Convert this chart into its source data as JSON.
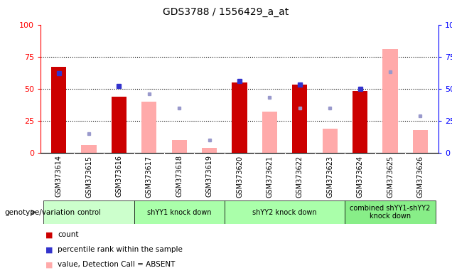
{
  "title": "GDS3788 / 1556429_a_at",
  "samples": [
    "GSM373614",
    "GSM373615",
    "GSM373616",
    "GSM373617",
    "GSM373618",
    "GSM373619",
    "GSM373620",
    "GSM373621",
    "GSM373622",
    "GSM373623",
    "GSM373624",
    "GSM373625",
    "GSM373626"
  ],
  "count": [
    67,
    0,
    44,
    0,
    0,
    0,
    55,
    0,
    53,
    0,
    48,
    0,
    0
  ],
  "percentile_rank": [
    62,
    0,
    52,
    0,
    0,
    0,
    56,
    0,
    53,
    0,
    50,
    0,
    0
  ],
  "absent_value": [
    0,
    6,
    0,
    40,
    10,
    4,
    0,
    32,
    0,
    19,
    0,
    81,
    18
  ],
  "absent_rank": [
    0,
    15,
    0,
    46,
    35,
    10,
    0,
    43,
    35,
    35,
    0,
    63,
    29
  ],
  "group_boundaries": [
    {
      "start": 0,
      "end": 2,
      "label": "control",
      "color": "#ccffcc"
    },
    {
      "start": 3,
      "end": 5,
      "label": "shYY1 knock down",
      "color": "#aaffaa"
    },
    {
      "start": 6,
      "end": 9,
      "label": "shYY2 knock down",
      "color": "#aaffaa"
    },
    {
      "start": 10,
      "end": 12,
      "label": "combined shYY1-shYY2\nknock down",
      "color": "#88ee88"
    }
  ],
  "bar_color_count": "#cc0000",
  "bar_color_absent_value": "#ffaaaa",
  "dot_color_rank": "#3333cc",
  "dot_color_absent_rank": "#9999cc",
  "ylim": [
    0,
    100
  ],
  "bg_color": "#cccccc",
  "plot_bg": "#ffffff",
  "bar_width": 0.5
}
